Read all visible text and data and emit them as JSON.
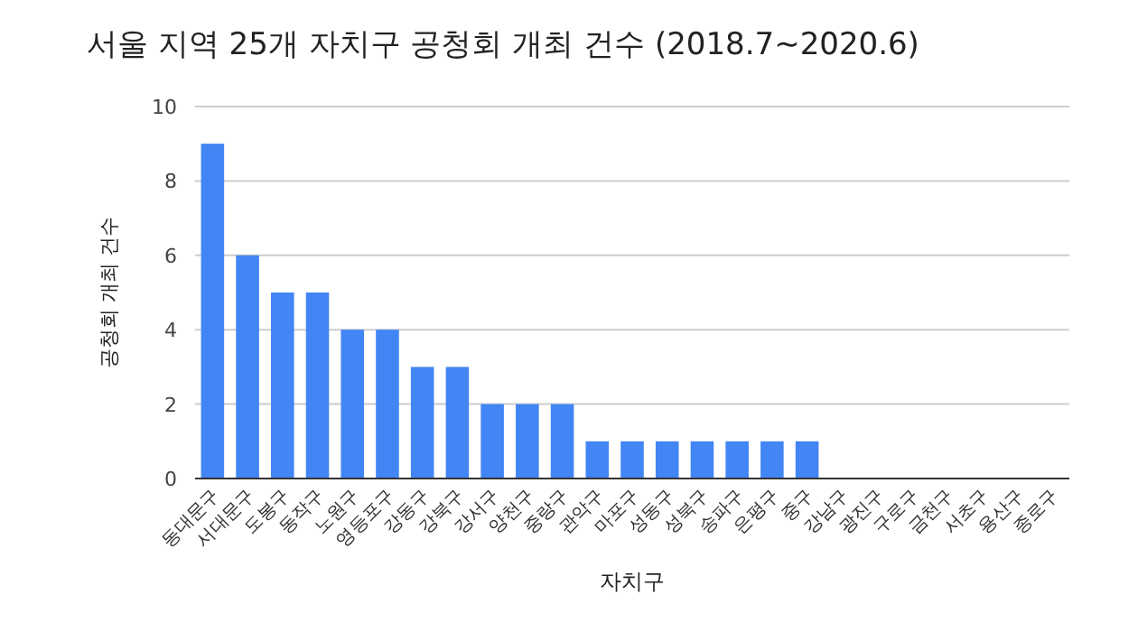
{
  "chart_data": {
    "type": "bar",
    "title": "서울 지역 25개 자치구 공청회 개최 건수 (2018.7~2020.6)",
    "xlabel": "자치구",
    "ylabel": "공청회 개최 건수",
    "categories": [
      "동대문구",
      "서대문구",
      "도봉구",
      "동작구",
      "노원구",
      "영등포구",
      "강동구",
      "강북구",
      "강서구",
      "양천구",
      "중랑구",
      "관악구",
      "마포구",
      "성동구",
      "성북구",
      "송파구",
      "은평구",
      "중구",
      "강남구",
      "광진구",
      "구로구",
      "금천구",
      "서초구",
      "용산구",
      "종로구"
    ],
    "values": [
      9,
      6,
      5,
      5,
      4,
      4,
      3,
      3,
      2,
      2,
      2,
      1,
      1,
      1,
      1,
      1,
      1,
      1,
      0,
      0,
      0,
      0,
      0,
      0,
      0
    ],
    "color": "#4285f4",
    "ylim": [
      0,
      10
    ],
    "yticks": [
      0,
      2,
      4,
      6,
      8,
      10
    ],
    "grid": "y"
  }
}
